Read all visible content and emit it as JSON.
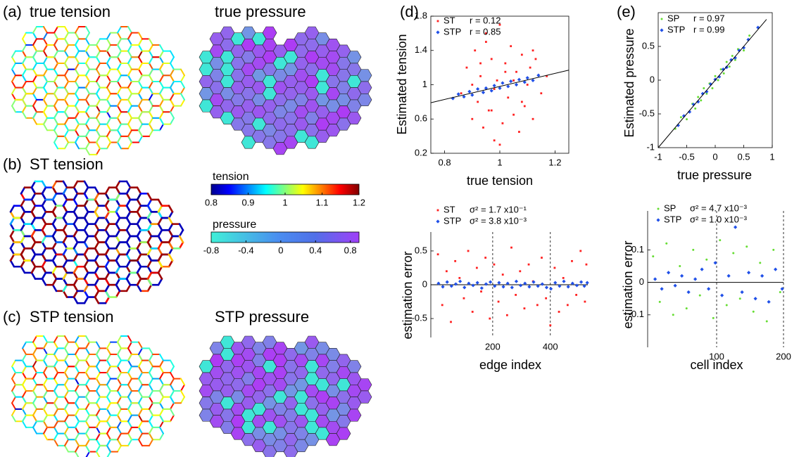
{
  "panels": [
    {
      "label": "(a)",
      "titles": [
        "true tension",
        "true pressure"
      ]
    },
    {
      "label": "(b)",
      "titles": [
        "ST tension"
      ]
    },
    {
      "label": "(c)",
      "titles": [
        "STP tension",
        "STP pressure"
      ]
    },
    {
      "label": "(d)"
    },
    {
      "label": "(e)"
    }
  ],
  "colorbars": [
    {
      "title": "tension",
      "colormap": "jet",
      "lim": [
        0.8,
        1.2
      ],
      "ticks": [
        0.8,
        0.9,
        1,
        1.1,
        1.2
      ]
    },
    {
      "title": "pressure",
      "colormap": "cool",
      "lim": [
        -0.8,
        0.9
      ],
      "ticks": [
        -0.8,
        -0.4,
        0,
        0.4,
        0.8
      ]
    }
  ],
  "chart_data": [
    {
      "type": "scatter",
      "frame": "box",
      "xlabel": "true tension",
      "ylabel": "Estimated tension",
      "xlim": [
        0.75,
        1.25
      ],
      "xticks": [
        0.8,
        1,
        1.2
      ],
      "ylim": [
        0.2,
        1.8
      ],
      "yticks": [
        0.2,
        0.6,
        1,
        1.4,
        1.8
      ],
      "lines": [
        {
          "x": [
            0.75,
            1.25
          ],
          "y": [
            0.79,
            1.17
          ]
        }
      ],
      "series": [
        {
          "name": "ST",
          "stat": "r = 0.12",
          "color": "#ff2020",
          "marker": "square",
          "x": [
            0.86,
            0.88,
            0.9,
            0.91,
            0.92,
            0.93,
            0.94,
            0.95,
            0.96,
            0.97,
            0.98,
            0.99,
            1.0,
            1.01,
            1.02,
            1.03,
            1.04,
            1.05,
            1.06,
            1.07,
            1.08,
            1.09,
            1.1,
            1.11,
            1.12,
            1.13,
            1.15,
            1.17,
            0.95,
            1.0,
            1.05,
            0.9,
            0.98,
            1.02,
            1.08,
            0.93,
            1.12,
            0.97
          ],
          "values": [
            0.9,
            1.2,
            0.6,
            1.4,
            0.8,
            1.1,
            0.5,
            1.6,
            0.7,
            1.3,
            0.35,
            1.05,
            1.7,
            0.55,
            1.25,
            0.85,
            1.45,
            0.65,
            1.15,
            0.45,
            1.35,
            0.75,
            1.0,
            1.2,
            0.6,
            1.3,
            0.9,
            1.1,
            1.5,
            0.3,
            1.05,
            1.0,
            0.95,
            1.15,
            0.8,
            1.25,
            1.4,
            0.7
          ]
        },
        {
          "name": "STP",
          "stat": "r = 0.85",
          "color": "#2050e8",
          "marker": "diamond",
          "x": [
            0.83,
            0.85,
            0.87,
            0.89,
            0.9,
            0.92,
            0.94,
            0.95,
            0.97,
            0.98,
            1.0,
            1.01,
            1.03,
            1.04,
            1.06,
            1.07,
            1.09,
            1.1,
            1.12,
            1.14
          ],
          "values": [
            0.84,
            0.89,
            0.86,
            0.92,
            0.88,
            0.95,
            0.91,
            0.96,
            0.93,
            0.99,
            0.96,
            1.02,
            0.98,
            1.04,
            1.0,
            1.06,
            1.03,
            1.08,
            1.05,
            1.11
          ]
        }
      ]
    },
    {
      "type": "scatter",
      "frame": "left",
      "xlabel": "edge index",
      "ylabel": "estimation error",
      "xlim": [
        0,
        530
      ],
      "xticks": [
        200,
        400
      ],
      "ylim": [
        -0.78,
        0.78
      ],
      "yticks": [
        -0.5,
        0,
        0.5
      ],
      "hlines": [
        0
      ],
      "vlines": [
        200,
        400
      ],
      "series": [
        {
          "name": "ST",
          "stat": "σ² = 1.7 x10⁻¹",
          "color": "#ff2020",
          "marker": "square",
          "x": [
            10,
            25,
            40,
            55,
            70,
            85,
            100,
            115,
            130,
            145,
            160,
            175,
            190,
            205,
            220,
            235,
            250,
            265,
            280,
            295,
            310,
            325,
            340,
            355,
            370,
            385,
            400,
            415,
            430,
            445,
            460,
            475,
            490,
            505,
            520,
            525
          ],
          "values": [
            0.45,
            -0.3,
            0.2,
            -0.55,
            0.35,
            0.1,
            -0.2,
            0.5,
            -0.4,
            0.25,
            -0.1,
            0.4,
            -0.5,
            0.3,
            -0.25,
            0.15,
            -0.45,
            0.55,
            -0.15,
            0.2,
            -0.35,
            0.3,
            0.05,
            -0.3,
            0.4,
            -0.2,
            -0.6,
            0.25,
            -0.4,
            0.1,
            -0.3,
            0.35,
            -0.15,
            0.5,
            -0.25,
            0.3
          ]
        },
        {
          "name": "STP",
          "stat": "σ² = 3.8 x10⁻³",
          "color": "#2050e8",
          "marker": "diamond",
          "x": [
            12,
            27,
            42,
            57,
            72,
            87,
            102,
            117,
            132,
            147,
            162,
            177,
            192,
            207,
            222,
            237,
            252,
            267,
            282,
            297,
            312,
            327,
            342,
            357,
            372,
            387,
            402,
            417,
            432,
            447,
            462,
            477,
            492,
            507,
            518,
            528
          ],
          "values": [
            0.02,
            -0.03,
            0.04,
            -0.02,
            0.01,
            0.05,
            -0.04,
            0.02,
            -0.01,
            0.03,
            -0.05,
            0.01,
            0.04,
            -0.02,
            0.03,
            -0.03,
            0.02,
            -0.04,
            0.05,
            -0.01,
            0.02,
            -0.03,
            0.04,
            -0.02,
            0.01,
            -0.04,
            -0.06,
            0.03,
            -0.02,
            0.05,
            -0.03,
            0.02,
            -0.01,
            0.04,
            -0.02,
            0.03
          ]
        }
      ]
    },
    {
      "type": "scatter",
      "frame": "box",
      "xlabel": "true pressure",
      "ylabel": "Estimated pressure",
      "xlim": [
        -1,
        1
      ],
      "xticks": [
        -1,
        -0.5,
        0,
        0.5,
        1
      ],
      "ylim": [
        -1,
        1
      ],
      "yticks": [
        -1,
        -0.5,
        0,
        0.5
      ],
      "lines": [
        {
          "x": [
            -1,
            0.9
          ],
          "y": [
            -1,
            0.9
          ]
        }
      ],
      "series": [
        {
          "name": "SP",
          "stat": "r = 0.97",
          "color": "#66dd33",
          "marker": "dot",
          "x": [
            -0.7,
            -0.6,
            -0.5,
            -0.4,
            -0.35,
            -0.3,
            -0.25,
            -0.2,
            -0.15,
            -0.1,
            -0.05,
            0,
            0.05,
            0.1,
            0.15,
            0.2,
            0.25,
            0.3,
            0.35,
            0.4,
            0.5,
            0.6
          ],
          "values": [
            -0.72,
            -0.55,
            -0.58,
            -0.35,
            -0.42,
            -0.25,
            -0.3,
            -0.12,
            -0.2,
            -0.05,
            -0.12,
            0.06,
            0.0,
            0.16,
            0.1,
            0.27,
            0.2,
            0.36,
            0.3,
            0.46,
            0.44,
            0.66
          ]
        },
        {
          "name": "STP",
          "stat": "r = 0.99",
          "color": "#2050e8",
          "marker": "diamond",
          "x": [
            -0.65,
            -0.55,
            -0.45,
            -0.38,
            -0.3,
            -0.22,
            -0.15,
            -0.08,
            0,
            0.07,
            0.14,
            0.2,
            0.28,
            0.35,
            0.42,
            0.5,
            0.58,
            0.75
          ],
          "values": [
            -0.67,
            -0.53,
            -0.47,
            -0.36,
            -0.32,
            -0.2,
            -0.17,
            -0.06,
            0.01,
            0.05,
            0.16,
            0.19,
            0.3,
            0.33,
            0.44,
            0.48,
            0.6,
            0.78
          ]
        }
      ]
    },
    {
      "type": "scatter",
      "frame": "left",
      "xlabel": "cell index",
      "ylabel": "estimation error",
      "xlim": [
        0,
        200
      ],
      "xticks": [
        100,
        200
      ],
      "ylim": [
        -0.2,
        0.22
      ],
      "yticks": [
        -0.1,
        0,
        0.1
      ],
      "hlines": [
        0
      ],
      "vlines": [
        100,
        200
      ],
      "series": [
        {
          "name": "SP",
          "stat": "σ² = 4.7 x10⁻³",
          "color": "#66dd33",
          "marker": "dot",
          "x": [
            5,
            15,
            25,
            35,
            45,
            55,
            65,
            75,
            85,
            95,
            105,
            115,
            125,
            135,
            145,
            155,
            165,
            175,
            185,
            195
          ],
          "values": [
            0.08,
            -0.06,
            0.12,
            -0.1,
            0.05,
            -0.08,
            0.1,
            -0.04,
            0.07,
            -0.11,
            0.13,
            -0.07,
            0.09,
            -0.05,
            0.11,
            -0.09,
            0.06,
            -0.12,
            0.1,
            -0.03
          ]
        },
        {
          "name": "STP",
          "stat": "σ² = 1.0 x10⁻³",
          "color": "#2050e8",
          "marker": "diamond",
          "x": [
            8,
            18,
            28,
            38,
            48,
            58,
            68,
            78,
            88,
            98,
            108,
            118,
            128,
            138,
            148,
            158,
            168,
            178,
            188,
            198
          ],
          "values": [
            0.01,
            -0.02,
            0.03,
            -0.01,
            0.02,
            -0.03,
            0.01,
            0.04,
            -0.02,
            0.06,
            -0.04,
            0.02,
            0.17,
            -0.03,
            0.03,
            -0.05,
            0.02,
            -0.06,
            0.04,
            -0.02
          ]
        }
      ]
    }
  ]
}
